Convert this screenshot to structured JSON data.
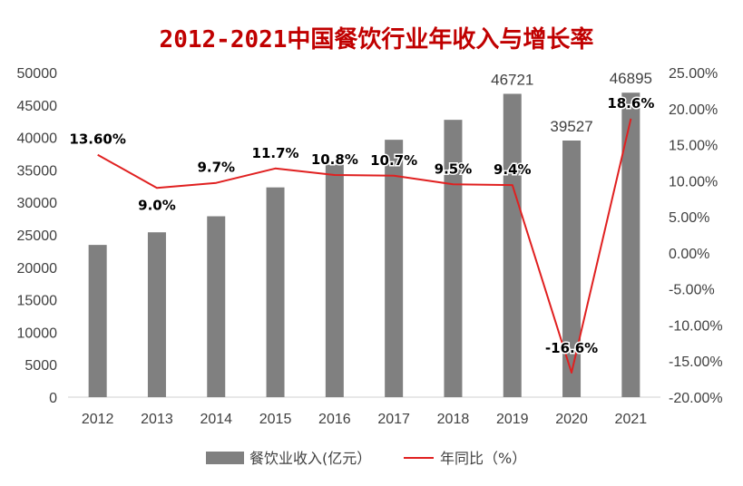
{
  "chart_data": {
    "type": "bar+line",
    "title": "2012-2021中国餐饮行业年收入与增长率",
    "categories": [
      "2012",
      "2013",
      "2014",
      "2015",
      "2016",
      "2017",
      "2018",
      "2019",
      "2020",
      "2021"
    ],
    "series": [
      {
        "name": "餐饮业收入(亿元）",
        "type": "bar",
        "axis": "left",
        "color": "#808080",
        "values": [
          23448,
          25392,
          27860,
          32310,
          35799,
          39644,
          42716,
          46721,
          39527,
          46895
        ],
        "labels": [
          "",
          "",
          "",
          "",
          "",
          "",
          "",
          "46721",
          "39527",
          "46895"
        ]
      },
      {
        "name": "年同比（%）",
        "type": "line",
        "axis": "right",
        "color": "#e02020",
        "values": [
          13.6,
          9.0,
          9.7,
          11.7,
          10.8,
          10.7,
          9.5,
          9.4,
          -16.6,
          18.6
        ],
        "labels": [
          "13.60%",
          "9.0%",
          "9.7%",
          "11.7%",
          "10.8%",
          "10.7%",
          "9.5%",
          "9.4%",
          "-16.6%",
          "18.6%"
        ]
      }
    ],
    "y_left": {
      "min": 0,
      "max": 50000,
      "step": 5000,
      "ticks": [
        "0",
        "5000",
        "10000",
        "15000",
        "20000",
        "25000",
        "30000",
        "35000",
        "40000",
        "45000",
        "50000"
      ]
    },
    "y_right": {
      "min": -20,
      "max": 25,
      "step": 5,
      "ticks": [
        "-20.00%",
        "-15.00%",
        "-10.00%",
        "-5.00%",
        "0.00%",
        "5.00%",
        "10.00%",
        "15.00%",
        "20.00%",
        "25.00%"
      ]
    },
    "grid": false,
    "legend_position": "bottom"
  }
}
